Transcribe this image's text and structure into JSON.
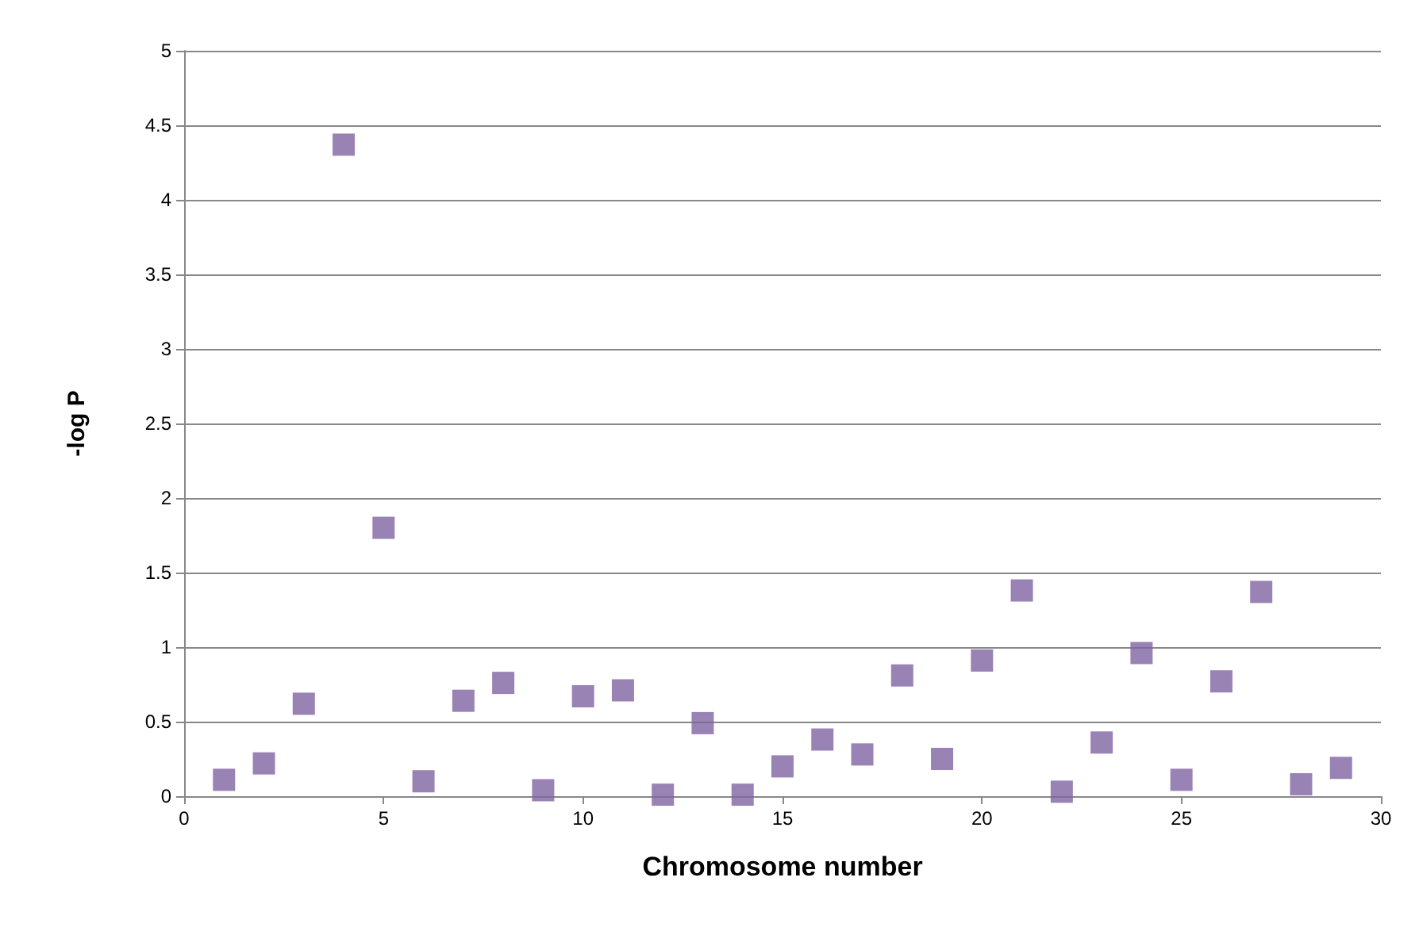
{
  "chart_data": {
    "type": "scatter",
    "xlabel": "Chromosome number",
    "ylabel": "-log P",
    "x": [
      1,
      2,
      3,
      4,
      5,
      6,
      7,
      8,
      9,
      10,
      11,
      12,
      13,
      14,
      15,
      16,
      17,
      18,
      19,
      20,
      21,
      22,
      23,
      24,
      25,
      26,
      27,
      28,
      29
    ],
    "series": [
      {
        "color": "#8064a2",
        "values": [
          0.11,
          0.22,
          0.62,
          4.37,
          1.8,
          0.1,
          0.64,
          0.76,
          0.04,
          0.67,
          0.71,
          0.01,
          0.49,
          0.01,
          0.2,
          0.38,
          0.28,
          0.81,
          0.25,
          0.91,
          1.38,
          0.03,
          0.36,
          0.96,
          0.11,
          0.77,
          1.37,
          0.08,
          0.19
        ]
      }
    ],
    "xlim": [
      0,
      30
    ],
    "xticks": [
      0,
      5,
      10,
      15,
      20,
      25,
      30
    ],
    "ylim": [
      0,
      5
    ],
    "yticks": [
      0,
      0.5,
      1,
      1.5,
      2,
      2.5,
      3,
      3.5,
      4,
      4.5,
      5
    ],
    "grid": "y",
    "marker": "square"
  }
}
